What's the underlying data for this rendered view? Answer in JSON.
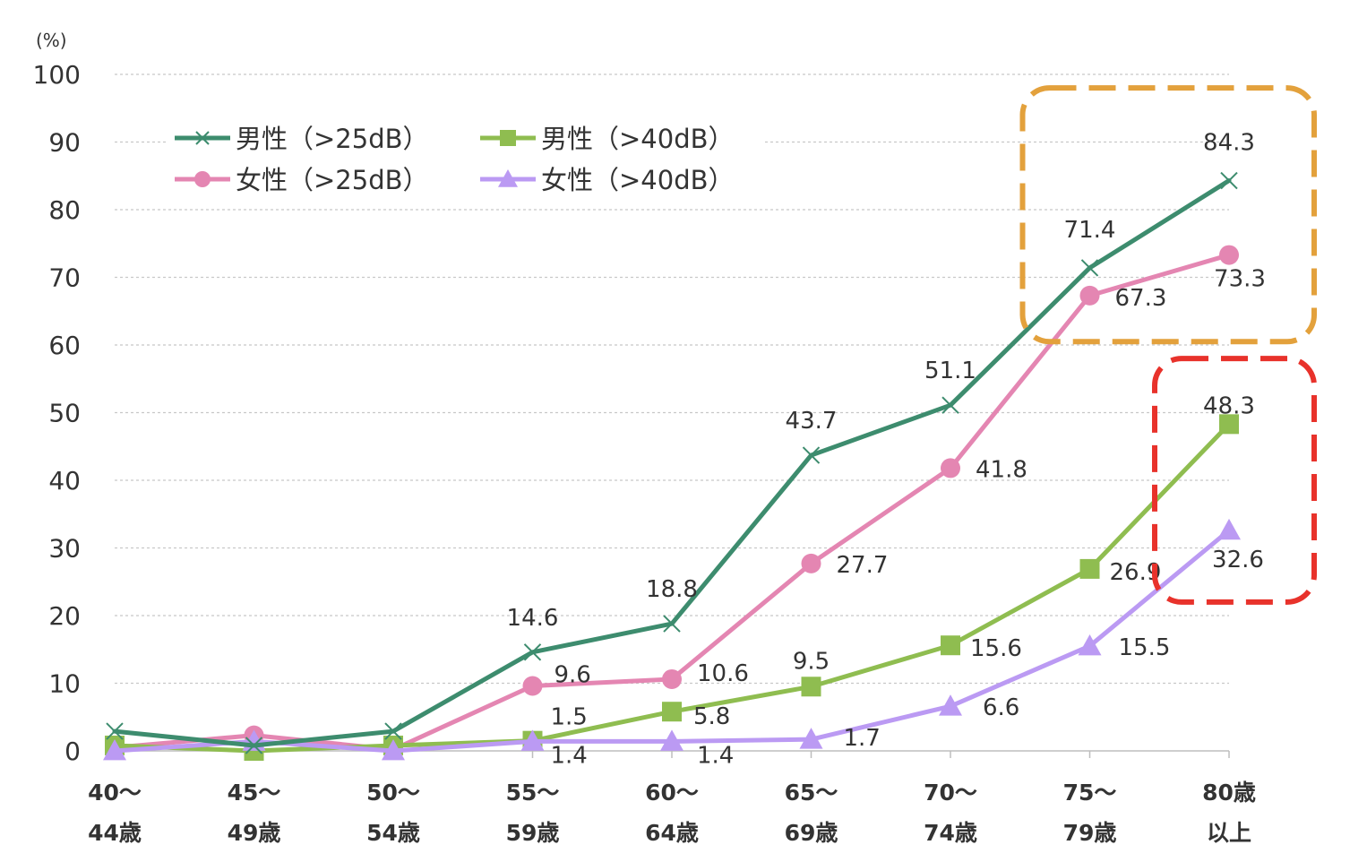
{
  "chart_data": {
    "type": "line",
    "unit_label": "(%)",
    "ylim": [
      0,
      100
    ],
    "yticks": [
      0,
      10,
      20,
      30,
      40,
      50,
      60,
      70,
      80,
      90,
      100
    ],
    "grid": true,
    "legend_position": "top-left",
    "categories": [
      [
        "40〜",
        "44歳"
      ],
      [
        "45〜",
        "49歳"
      ],
      [
        "50〜",
        "54歳"
      ],
      [
        "55〜",
        "59歳"
      ],
      [
        "60〜",
        "64歳"
      ],
      [
        "65〜",
        "69歳"
      ],
      [
        "70〜",
        "74歳"
      ],
      [
        "75〜",
        "79歳"
      ],
      [
        "80歳",
        "以上"
      ]
    ],
    "series": [
      {
        "name": "男性（>25dB）",
        "color": "#3d8c6e",
        "marker": "x",
        "values": [
          2.9,
          0.8,
          2.9,
          14.6,
          18.8,
          43.7,
          51.1,
          71.4,
          84.3
        ],
        "labels": [
          null,
          null,
          null,
          "14.6",
          "18.8",
          "43.7",
          "51.1",
          "71.4",
          "84.3"
        ]
      },
      {
        "name": "男性（>40dB）",
        "color": "#8fbd50",
        "marker": "square",
        "values": [
          0.8,
          0.0,
          0.8,
          1.5,
          5.8,
          9.5,
          15.6,
          26.9,
          48.3
        ],
        "labels": [
          null,
          null,
          null,
          "1.5",
          "5.8",
          "9.5",
          "15.6",
          "26.9",
          "48.3"
        ]
      },
      {
        "name": "女性（>25dB）",
        "color": "#e486b2",
        "marker": "circle",
        "values": [
          0.5,
          2.3,
          0.2,
          9.6,
          10.6,
          27.7,
          41.8,
          67.3,
          73.3
        ],
        "labels": [
          null,
          null,
          null,
          "9.6",
          "10.6",
          "27.7",
          "41.8",
          "67.3",
          "73.3"
        ]
      },
      {
        "name": "女性（>40dB）",
        "color": "#bb9af3",
        "marker": "triangle",
        "values": [
          0.0,
          1.4,
          0.0,
          1.4,
          1.4,
          1.7,
          6.6,
          15.5,
          32.6
        ],
        "labels": [
          null,
          null,
          null,
          "1.4",
          "1.4",
          "1.7",
          "6.6",
          "15.5",
          "32.6"
        ]
      }
    ],
    "highlights": [
      {
        "name": "orange-box",
        "color": "#e3a13c",
        "from_category": 7,
        "to_category": 8,
        "y_from": 60.5,
        "y_to": 98
      },
      {
        "name": "red-box",
        "color": "#e8322b",
        "from_category": 8,
        "to_category": 8,
        "y_from": 22,
        "y_to": 58
      }
    ]
  }
}
